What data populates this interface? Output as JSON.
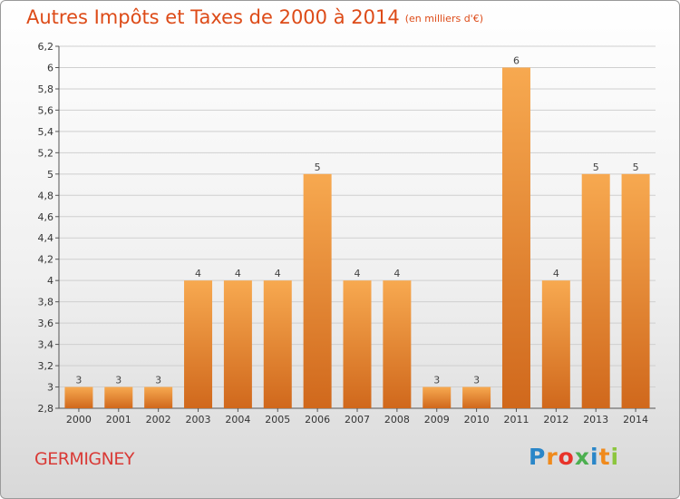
{
  "header": {
    "title": "Autres Impôts et Taxes de 2000 à 2014",
    "unit": "(en milliers d'€)"
  },
  "footer": {
    "commune": "GERMIGNEY",
    "logo_letters": [
      "P",
      "r",
      "o",
      "x",
      "i",
      "t",
      "i"
    ]
  },
  "colors": {
    "title": "#dd4b18",
    "commune": "#d93a36",
    "bar_top": "#f7a950",
    "bar_bottom": "#d0681c",
    "grid": "#cfcfcf",
    "logo": [
      "#2a86c8",
      "#f08a1c",
      "#e8332a",
      "#4caf50",
      "#2a86c8",
      "#f08a1c",
      "#8cc63e"
    ]
  },
  "chart_data": {
    "type": "bar",
    "title": "Autres Impôts et Taxes de 2000 à 2014",
    "categories": [
      "2000",
      "2001",
      "2002",
      "2003",
      "2004",
      "2005",
      "2006",
      "2007",
      "2008",
      "2009",
      "2010",
      "2011",
      "2012",
      "2013",
      "2014"
    ],
    "values": [
      3,
      3,
      3,
      4,
      4,
      4,
      5,
      4,
      4,
      3,
      3,
      6,
      4,
      5,
      5
    ],
    "y_ticks": [
      "2,8",
      "3",
      "3,2",
      "3,4",
      "3,6",
      "3,8",
      "4",
      "4,2",
      "4,4",
      "4,6",
      "4,8",
      "5",
      "5,2",
      "5,4",
      "5,6",
      "5,8",
      "6",
      "6,2"
    ],
    "xlabel": "",
    "ylabel": "",
    "ylim": [
      2.8,
      6.2
    ],
    "grid": true
  }
}
